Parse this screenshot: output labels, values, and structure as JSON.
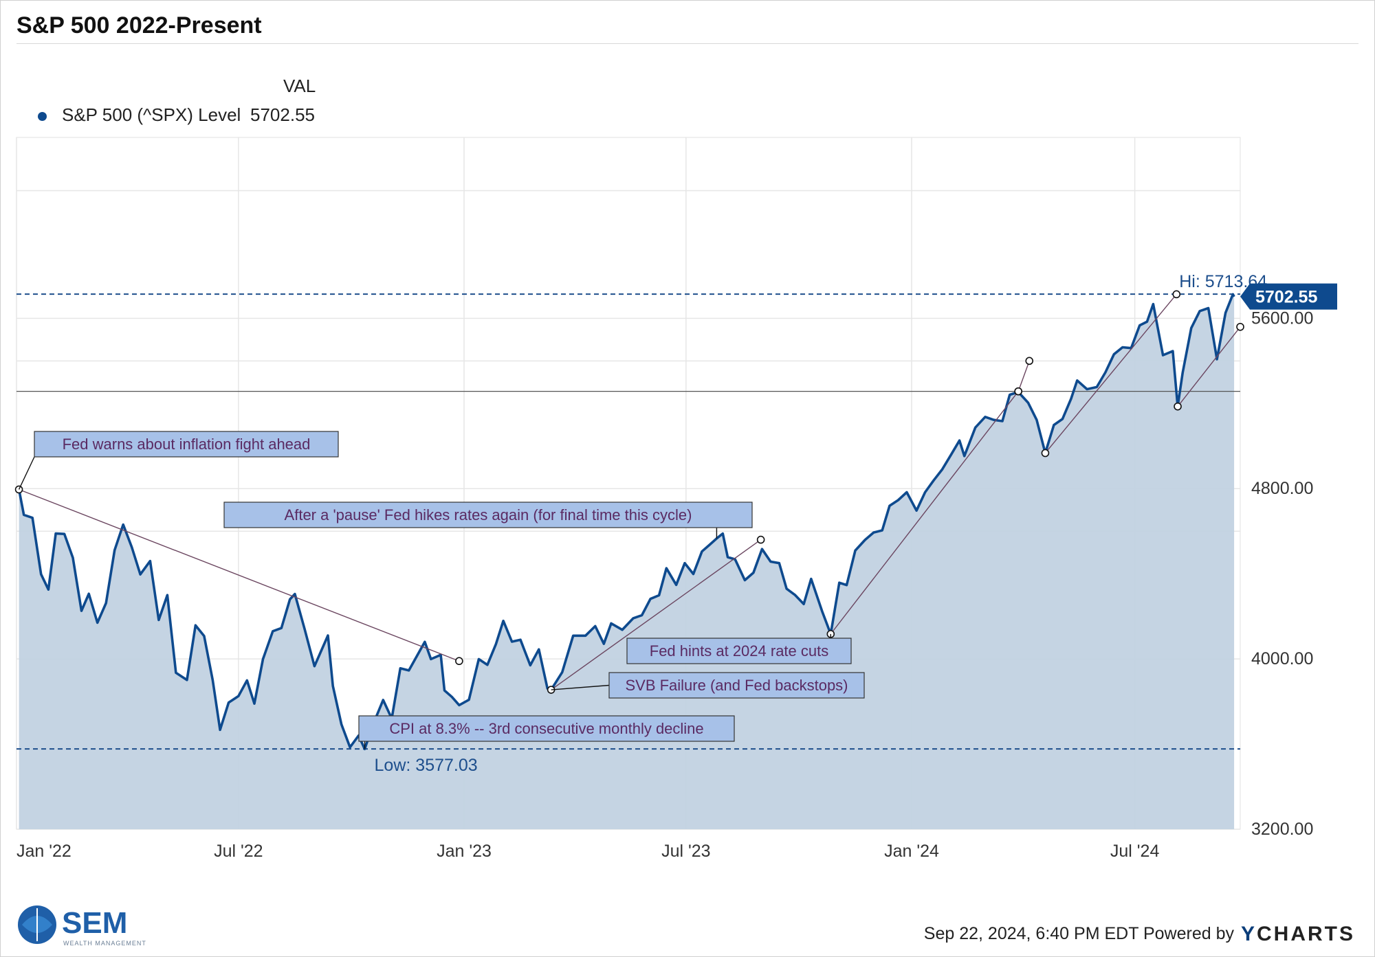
{
  "title": "S&P 500 2022-Present",
  "legend": {
    "column_header": "VAL",
    "series_name": "S&P 500 (^SPX) Level",
    "series_value": "5702.55"
  },
  "footer": {
    "timestamp": "Sep 22, 2024, 6:40 PM EDT Powered by",
    "ycharts_y": "Y",
    "ycharts_rest": "CHARTS",
    "sem_name": "SEM",
    "sem_tagline": "WEALTH MANAGEMENT"
  },
  "colors": {
    "line": "#0e4a8e",
    "area": "#c2d2e1",
    "callout_fill": "#a7c1e8",
    "callout_text": "#5a2a62",
    "last_badge": "#0e4a8e"
  },
  "chart_data": {
    "type": "area",
    "title": "S&P 500 2022-Present",
    "series": [
      {
        "name": "S&P 500 (^SPX) Level",
        "points": [
          [
            "2022-01-03",
            4796
          ],
          [
            "2022-01-07",
            4677
          ],
          [
            "2022-01-14",
            4663
          ],
          [
            "2022-01-21",
            4398
          ],
          [
            "2022-01-27",
            4326
          ],
          [
            "2022-02-02",
            4589
          ],
          [
            "2022-02-09",
            4587
          ],
          [
            "2022-02-16",
            4475
          ],
          [
            "2022-02-23",
            4226
          ],
          [
            "2022-03-01",
            4306
          ],
          [
            "2022-03-08",
            4170
          ],
          [
            "2022-03-15",
            4262
          ],
          [
            "2022-03-22",
            4511
          ],
          [
            "2022-03-29",
            4631
          ],
          [
            "2022-04-05",
            4525
          ],
          [
            "2022-04-12",
            4397
          ],
          [
            "2022-04-20",
            4460
          ],
          [
            "2022-04-27",
            4183
          ],
          [
            "2022-05-04",
            4300
          ],
          [
            "2022-05-11",
            3935
          ],
          [
            "2022-05-20",
            3901
          ],
          [
            "2022-05-27",
            4158
          ],
          [
            "2022-06-03",
            4108
          ],
          [
            "2022-06-10",
            3900
          ],
          [
            "2022-06-16",
            3667
          ],
          [
            "2022-06-23",
            3795
          ],
          [
            "2022-07-01",
            3825
          ],
          [
            "2022-07-08",
            3899
          ],
          [
            "2022-07-14",
            3790
          ],
          [
            "2022-07-21",
            3999
          ],
          [
            "2022-07-29",
            4130
          ],
          [
            "2022-08-05",
            4145
          ],
          [
            "2022-08-12",
            4280
          ],
          [
            "2022-08-16",
            4305
          ],
          [
            "2022-08-24",
            4140
          ],
          [
            "2022-09-01",
            3966
          ],
          [
            "2022-09-12",
            4110
          ],
          [
            "2022-09-16",
            3873
          ],
          [
            "2022-09-23",
            3693
          ],
          [
            "2022-09-30",
            3585
          ],
          [
            "2022-10-07",
            3640
          ],
          [
            "2022-10-12",
            3577
          ],
          [
            "2022-10-19",
            3695
          ],
          [
            "2022-10-27",
            3807
          ],
          [
            "2022-11-03",
            3720
          ],
          [
            "2022-11-10",
            3956
          ],
          [
            "2022-11-17",
            3946
          ],
          [
            "2022-11-30",
            4080
          ],
          [
            "2022-12-05",
            3999
          ],
          [
            "2022-12-13",
            4019
          ],
          [
            "2022-12-16",
            3852
          ],
          [
            "2022-12-22",
            3822
          ],
          [
            "2022-12-28",
            3783
          ],
          [
            "2023-01-05",
            3808
          ],
          [
            "2023-01-13",
            3999
          ],
          [
            "2023-01-20",
            3972
          ],
          [
            "2023-01-27",
            4070
          ],
          [
            "2023-02-02",
            4179
          ],
          [
            "2023-02-09",
            4081
          ],
          [
            "2023-02-16",
            4090
          ],
          [
            "2023-02-24",
            3970
          ],
          [
            "2023-03-03",
            4045
          ],
          [
            "2023-03-10",
            3861
          ],
          [
            "2023-03-13",
            3855
          ],
          [
            "2023-03-22",
            3937
          ],
          [
            "2023-03-31",
            4109
          ],
          [
            "2023-04-10",
            4109
          ],
          [
            "2023-04-18",
            4154
          ],
          [
            "2023-04-25",
            4071
          ],
          [
            "2023-05-01",
            4167
          ],
          [
            "2023-05-10",
            4137
          ],
          [
            "2023-05-19",
            4191
          ],
          [
            "2023-05-26",
            4205
          ],
          [
            "2023-06-02",
            4282
          ],
          [
            "2023-06-09",
            4299
          ],
          [
            "2023-06-15",
            4426
          ],
          [
            "2023-06-23",
            4348
          ],
          [
            "2023-06-30",
            4450
          ],
          [
            "2023-07-07",
            4399
          ],
          [
            "2023-07-14",
            4505
          ],
          [
            "2023-07-20",
            4535
          ],
          [
            "2023-07-26",
            4566
          ],
          [
            "2023-07-31",
            4589
          ],
          [
            "2023-08-04",
            4478
          ],
          [
            "2023-08-10",
            4468
          ],
          [
            "2023-08-18",
            4370
          ],
          [
            "2023-08-25",
            4405
          ],
          [
            "2023-09-01",
            4516
          ],
          [
            "2023-09-08",
            4457
          ],
          [
            "2023-09-15",
            4450
          ],
          [
            "2023-09-21",
            4330
          ],
          [
            "2023-09-28",
            4300
          ],
          [
            "2023-10-05",
            4258
          ],
          [
            "2023-10-11",
            4376
          ],
          [
            "2023-10-20",
            4224
          ],
          [
            "2023-10-27",
            4117
          ],
          [
            "2023-11-03",
            4358
          ],
          [
            "2023-11-09",
            4347
          ],
          [
            "2023-11-16",
            4509
          ],
          [
            "2023-11-24",
            4559
          ],
          [
            "2023-12-01",
            4594
          ],
          [
            "2023-12-08",
            4604
          ],
          [
            "2023-12-14",
            4719
          ],
          [
            "2023-12-21",
            4746
          ],
          [
            "2023-12-28",
            4783
          ],
          [
            "2024-01-05",
            4697
          ],
          [
            "2024-01-12",
            4783
          ],
          [
            "2024-01-19",
            4839
          ],
          [
            "2024-01-26",
            4891
          ],
          [
            "2024-02-02",
            4958
          ],
          [
            "2024-02-09",
            5026
          ],
          [
            "2024-02-13",
            4953
          ],
          [
            "2024-02-22",
            5087
          ],
          [
            "2024-03-01",
            5137
          ],
          [
            "2024-03-08",
            5123
          ],
          [
            "2024-03-15",
            5117
          ],
          [
            "2024-03-21",
            5241
          ],
          [
            "2024-03-28",
            5254
          ],
          [
            "2024-04-05",
            5204
          ],
          [
            "2024-04-12",
            5123
          ],
          [
            "2024-04-19",
            4967
          ],
          [
            "2024-04-26",
            5099
          ],
          [
            "2024-05-03",
            5127
          ],
          [
            "2024-05-10",
            5222
          ],
          [
            "2024-05-15",
            5308
          ],
          [
            "2024-05-23",
            5267
          ],
          [
            "2024-05-31",
            5277
          ],
          [
            "2024-06-07",
            5346
          ],
          [
            "2024-06-14",
            5431
          ],
          [
            "2024-06-21",
            5464
          ],
          [
            "2024-06-28",
            5460
          ],
          [
            "2024-07-05",
            5567
          ],
          [
            "2024-07-11",
            5584
          ],
          [
            "2024-07-16",
            5667
          ],
          [
            "2024-07-24",
            5427
          ],
          [
            "2024-08-01",
            5446
          ],
          [
            "2024-08-05",
            5186
          ],
          [
            "2024-08-09",
            5344
          ],
          [
            "2024-08-16",
            5554
          ],
          [
            "2024-08-23",
            5634
          ],
          [
            "2024-08-30",
            5648
          ],
          [
            "2024-09-06",
            5408
          ],
          [
            "2024-09-13",
            5626
          ],
          [
            "2024-09-19",
            5713
          ],
          [
            "2024-09-20",
            5702
          ]
        ]
      }
    ],
    "x_range": [
      "2022-01-01",
      "2024-09-25"
    ],
    "x_ticks": [
      {
        "date": "2022-01-01",
        "label": "Jan '22"
      },
      {
        "date": "2022-07-01",
        "label": "Jul '22"
      },
      {
        "date": "2023-01-01",
        "label": "Jan '23"
      },
      {
        "date": "2023-07-01",
        "label": "Jul '23"
      },
      {
        "date": "2024-01-01",
        "label": "Jan '24"
      },
      {
        "date": "2024-07-01",
        "label": "Jul '24"
      }
    ],
    "y_range": [
      3200,
      6450
    ],
    "y_ticks": [
      {
        "value": 3200,
        "label": "3200.00"
      },
      {
        "value": 4000,
        "label": "4000.00"
      },
      {
        "value": 4800,
        "label": "4800.00"
      },
      {
        "value": 5600,
        "label": "5600.00"
      }
    ],
    "extra_gridlines": [
      4600,
      5400,
      6200
    ],
    "reference_line": 5257,
    "high": {
      "value": 5713.64,
      "label": "Hi: 5713.64"
    },
    "low": {
      "value": 3577.03,
      "label": "Low: 3577.03"
    },
    "last_value_label": "5702.55",
    "last_value": 5702.55,
    "annotations": [
      {
        "text": "Fed warns about inflation fight ahead",
        "anchor": [
          "2022-01-03",
          4796
        ]
      },
      {
        "text": "After a 'pause' Fed hikes rates again (for final time this cycle)",
        "anchor": [
          "2023-07-26",
          4566
        ]
      },
      {
        "text": "Fed hints at 2024 rate cuts",
        "anchor": [
          "2023-10-27",
          4117
        ]
      },
      {
        "text": "SVB Failure (and Fed backstops)",
        "anchor": [
          "2023-03-13",
          3855
        ]
      },
      {
        "text": "CPI at 8.3% -- 3rd consecutive monthly decline",
        "anchor": [
          "2022-10-12",
          3577
        ]
      }
    ],
    "trend_lines": [
      {
        "from": [
          "2022-01-03",
          4796
        ],
        "to": [
          "2022-12-28",
          3990
        ]
      },
      {
        "from": [
          "2023-03-13",
          3855
        ],
        "to": [
          "2023-08-31",
          4560
        ]
      },
      {
        "from": [
          "2023-10-27",
          4117
        ],
        "to": [
          "2024-03-28",
          5257
        ]
      },
      {
        "from": [
          "2024-03-28",
          5257
        ],
        "to": [
          "2024-04-06",
          5400
        ]
      },
      {
        "from": [
          "2024-04-19",
          4967
        ],
        "to": [
          "2024-08-04",
          5713
        ]
      },
      {
        "from": [
          "2024-08-05",
          5186
        ],
        "to": [
          "2024-09-25",
          5560
        ]
      }
    ]
  }
}
